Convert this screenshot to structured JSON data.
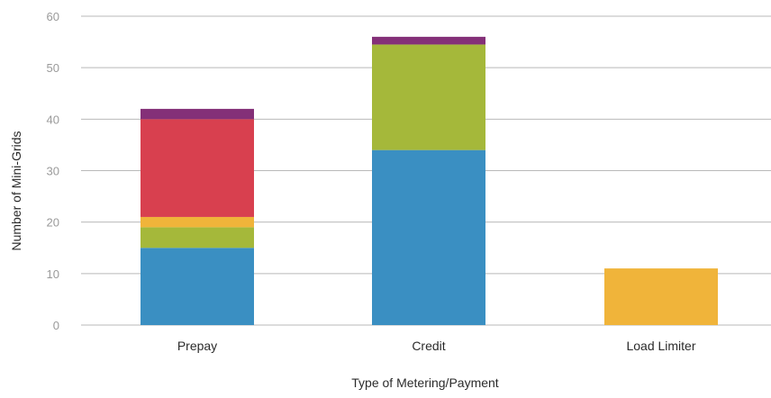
{
  "chart_data": {
    "type": "bar",
    "stacked": true,
    "title": "",
    "xlabel": "Type of Metering/Payment",
    "ylabel": "Number of Mini-Grids",
    "ylim": [
      0,
      60
    ],
    "yticks": [
      "0",
      "10",
      "20",
      "30",
      "40",
      "50",
      "60"
    ],
    "grid": true,
    "legend": "none",
    "categories": [
      "Prepay",
      "Credit",
      "Load Limiter"
    ],
    "series": [
      {
        "color": "#3a8fc2",
        "values": [
          15,
          34,
          0
        ]
      },
      {
        "color": "#a5b83a",
        "values": [
          4,
          20.5,
          0
        ]
      },
      {
        "color": "#f0b43a",
        "values": [
          2,
          0,
          11
        ]
      },
      {
        "color": "#d8404f",
        "values": [
          19,
          0,
          0
        ]
      },
      {
        "color": "#843078",
        "values": [
          2,
          1.5,
          0
        ]
      }
    ]
  }
}
